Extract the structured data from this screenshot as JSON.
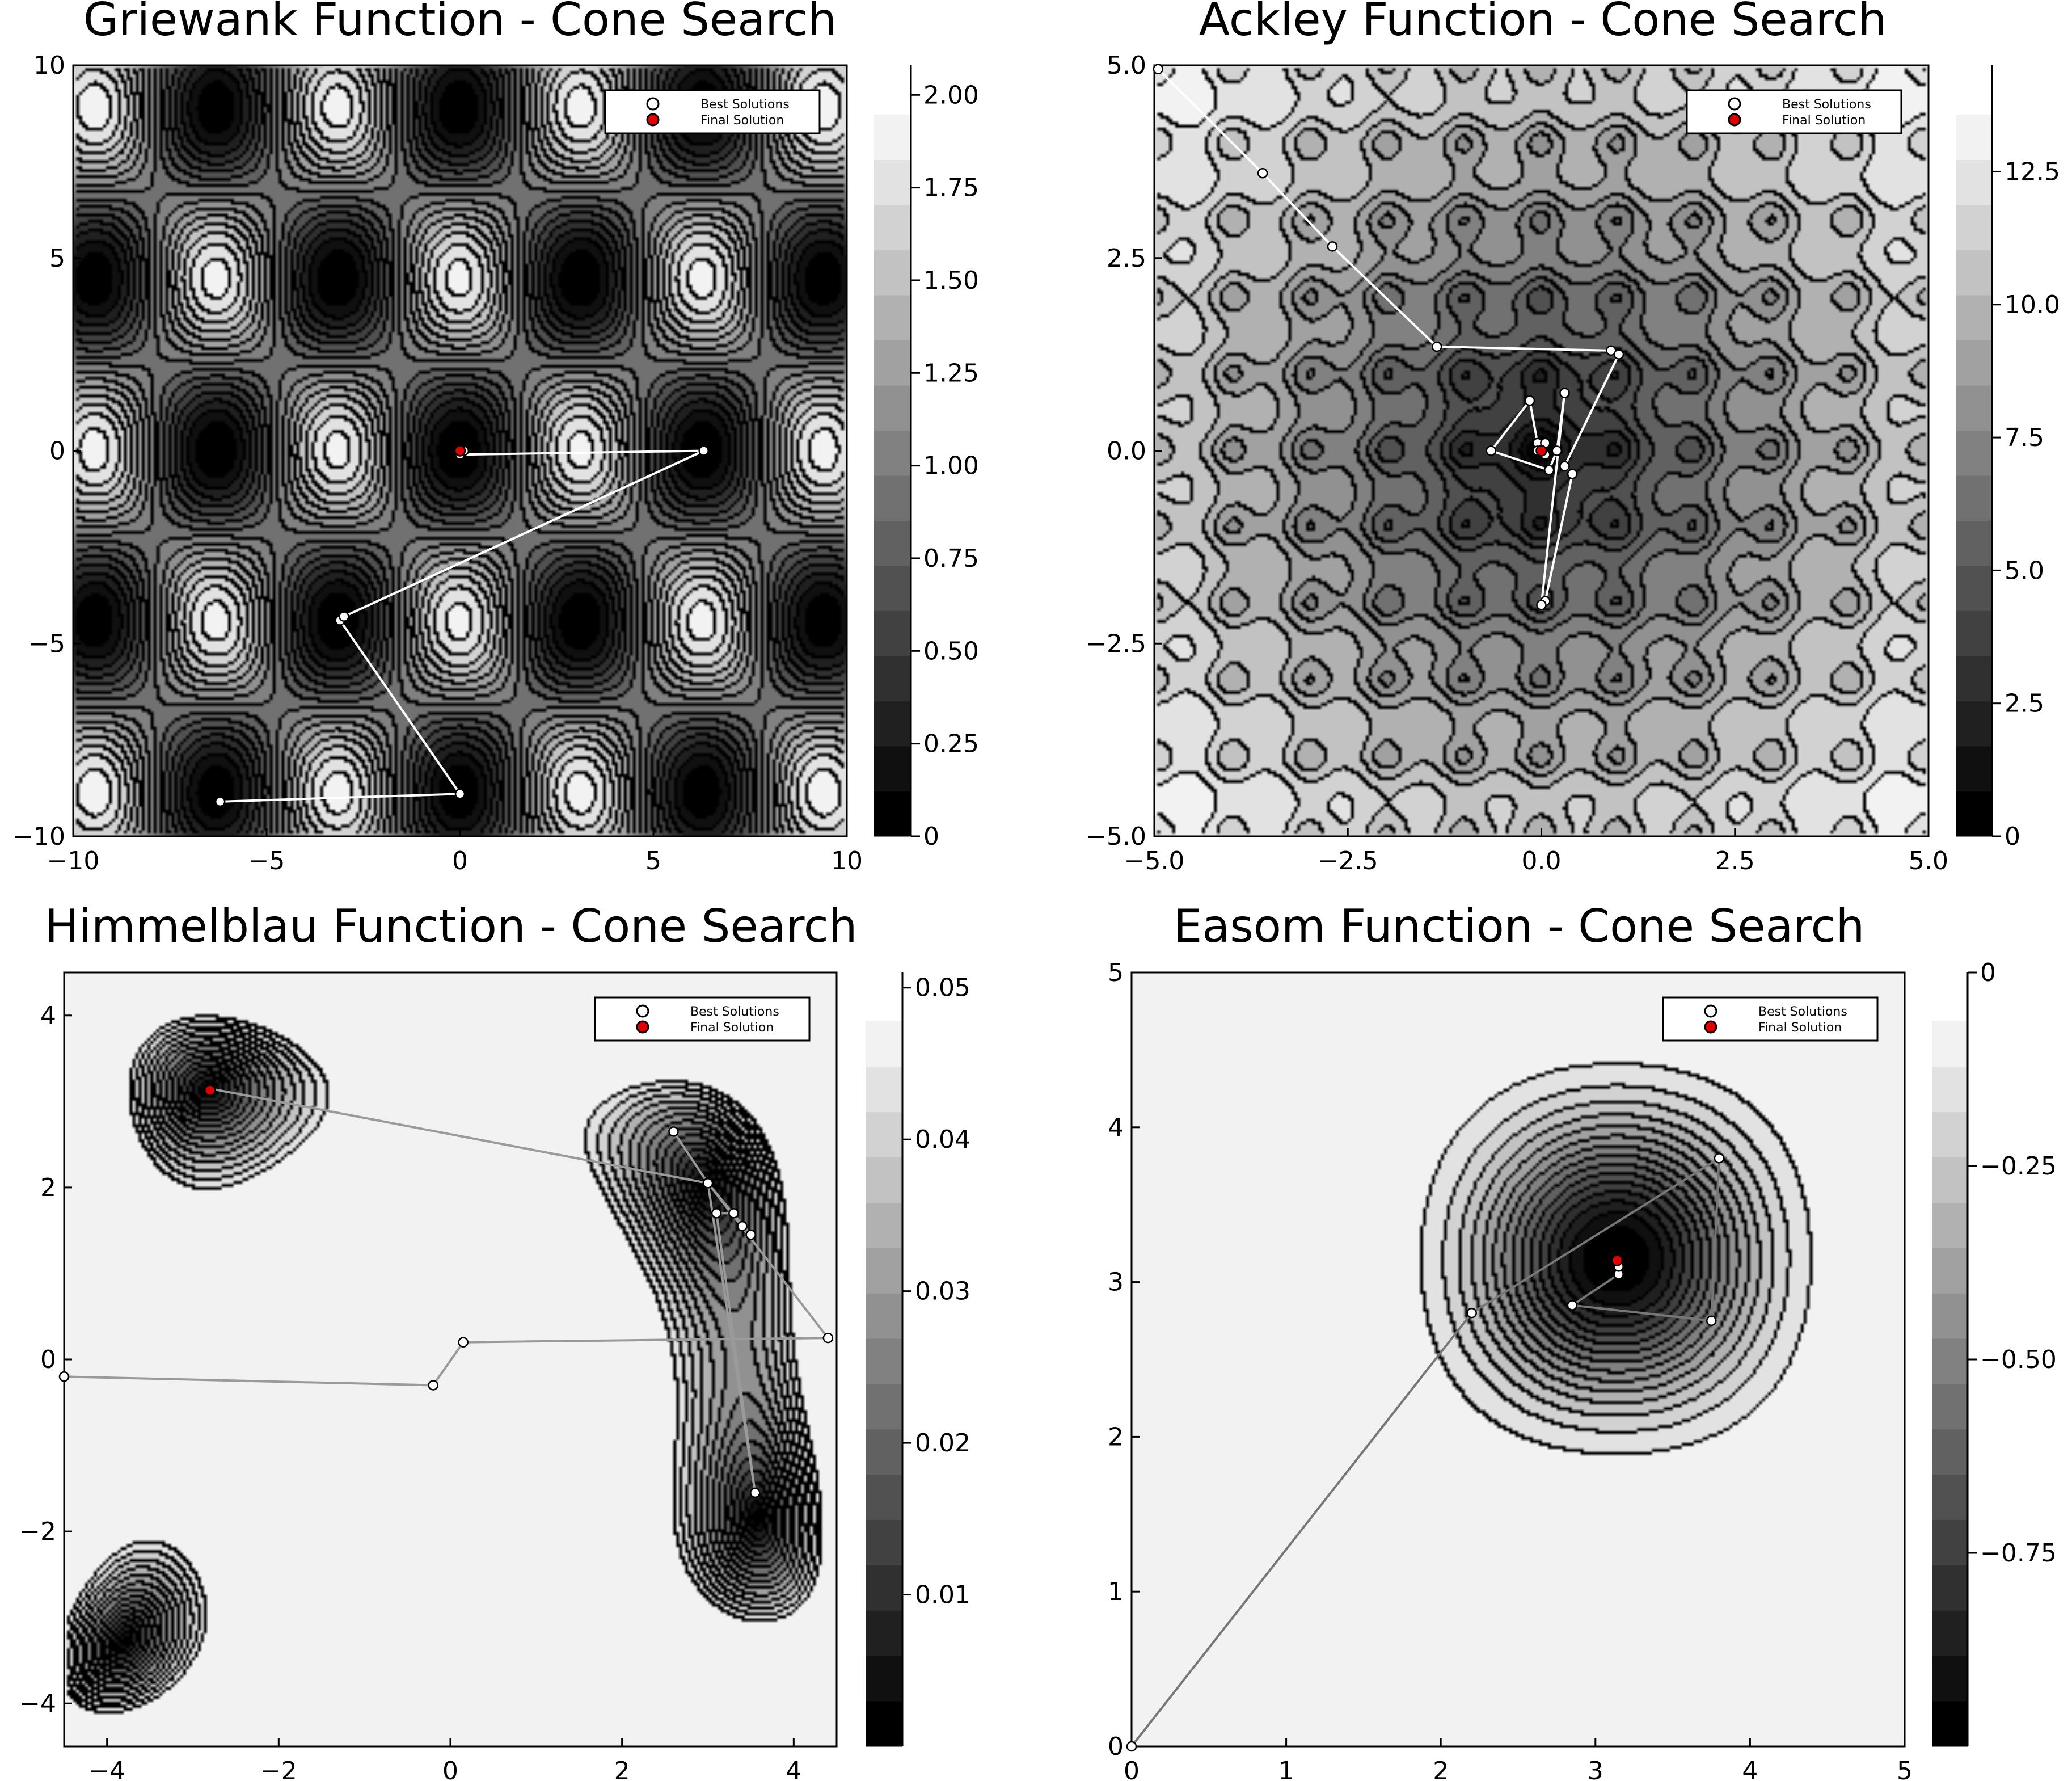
{
  "chart_data": [
    {
      "type": "contour",
      "title": "Griewank Function - Cone Search",
      "xlim": [
        -10,
        10
      ],
      "ylim": [
        -10,
        10
      ],
      "xticks": [
        -10,
        -5,
        0,
        5,
        10
      ],
      "xtick_labels": [
        "−10",
        "−5",
        "0",
        "5",
        "10"
      ],
      "yticks": [
        -10,
        -5,
        0,
        5,
        10
      ],
      "ytick_labels": [
        "−10",
        "−5",
        "0",
        "5",
        "10"
      ],
      "colorbar": {
        "range": [
          0,
          2.08
        ],
        "ticks": [
          0,
          0.25,
          0.5,
          0.75,
          1.0,
          1.25,
          1.5,
          1.75,
          2.0
        ],
        "tick_labels": [
          "0",
          "0.25",
          "0.50",
          "0.75",
          "1.00",
          "1.25",
          "1.50",
          "1.75",
          "2.00"
        ],
        "levels": 16
      },
      "grid": false,
      "legend": {
        "placement": "top-right",
        "entries": [
          "Best Solutions",
          "Final Solution"
        ]
      },
      "path_color": "#ffffff",
      "series": [
        {
          "name": "Best Solutions",
          "points": [
            [
              -6.2,
              -9.1
            ],
            [
              0,
              -8.9
            ],
            [
              -3.1,
              -4.4
            ],
            [
              -3.0,
              -4.3
            ],
            [
              6.3,
              0
            ],
            [
              0,
              -0.1
            ],
            [
              0.1,
              0.0
            ]
          ]
        },
        {
          "name": "Final Solution",
          "points": [
            [
              0,
              0
            ]
          ]
        }
      ]
    },
    {
      "type": "contour",
      "title": "Ackley Function - Cone Search",
      "xlim": [
        -5,
        5
      ],
      "ylim": [
        -5,
        5
      ],
      "xticks": [
        -5,
        -2.5,
        0,
        2.5,
        5
      ],
      "xtick_labels": [
        "−5.0",
        "−2.5",
        "0.0",
        "2.5",
        "5.0"
      ],
      "yticks": [
        -5,
        -2.5,
        0,
        2.5,
        5
      ],
      "ytick_labels": [
        "−5.0",
        "−2.5",
        "0.0",
        "2.5",
        "5.0"
      ],
      "colorbar": {
        "range": [
          0,
          14.5
        ],
        "ticks": [
          0,
          2.5,
          5,
          7.5,
          10,
          12.5
        ],
        "tick_labels": [
          "0",
          "2.5",
          "5.0",
          "7.5",
          "10.0",
          "12.5"
        ],
        "levels": 16
      },
      "grid": false,
      "legend": {
        "placement": "top-right",
        "entries": [
          "Best Solutions",
          "Final Solution"
        ]
      },
      "path_color": "#ffffff",
      "series": [
        {
          "name": "Best Solutions",
          "points": [
            [
              -4.95,
              4.95
            ],
            [
              -3.6,
              3.6
            ],
            [
              -2.7,
              2.65
            ],
            [
              -1.35,
              1.35
            ],
            [
              0.9,
              1.3
            ],
            [
              1.0,
              1.25
            ],
            [
              0.3,
              -0.2
            ],
            [
              0.4,
              -0.3
            ],
            [
              0.05,
              -1.95
            ],
            [
              0.0,
              -2.0
            ],
            [
              0.3,
              0.75
            ],
            [
              0.2,
              0.0
            ],
            [
              0.1,
              -0.25
            ],
            [
              -0.65,
              0.0
            ],
            [
              -0.15,
              0.65
            ],
            [
              -0.05,
              0.1
            ],
            [
              0.05,
              0.1
            ],
            [
              -0.05,
              0.0
            ],
            [
              0.05,
              -0.05
            ]
          ]
        },
        {
          "name": "Final Solution",
          "points": [
            [
              0,
              0
            ]
          ]
        }
      ]
    },
    {
      "type": "contour",
      "title": "Himmelblau Function - Cone Search",
      "xlim": [
        -4.5,
        4.5
      ],
      "ylim": [
        -4.5,
        4.5
      ],
      "xticks": [
        -4,
        -2,
        0,
        2,
        4
      ],
      "xtick_labels": [
        "−4",
        "−2",
        "0",
        "2",
        "4"
      ],
      "yticks": [
        -4,
        -2,
        0,
        2,
        4
      ],
      "ytick_labels": [
        "−4",
        "−2",
        "0",
        "2",
        "4"
      ],
      "colorbar": {
        "range": [
          0,
          0.051
        ],
        "ticks": [
          0.01,
          0.02,
          0.03,
          0.04,
          0.05
        ],
        "tick_labels": [
          "0.01",
          "0.02",
          "0.03",
          "0.04",
          "0.05"
        ],
        "levels": 16
      },
      "grid": false,
      "legend": {
        "placement": "top-right",
        "entries": [
          "Best Solutions",
          "Final Solution"
        ]
      },
      "path_color": "#9a9a9a",
      "series": [
        {
          "name": "Best Solutions",
          "points": [
            [
              -4.5,
              -0.2
            ],
            [
              -0.2,
              -0.3
            ],
            [
              0.15,
              0.2
            ],
            [
              4.4,
              0.25
            ],
            [
              3.0,
              2.05
            ],
            [
              2.6,
              2.65
            ],
            [
              3.0,
              2.05
            ],
            [
              3.55,
              -1.55
            ],
            [
              3.1,
              1.7
            ],
            [
              3.3,
              1.7
            ],
            [
              3.4,
              1.55
            ],
            [
              3.5,
              1.45
            ],
            [
              3.0,
              2.05
            ],
            [
              -2.8,
              3.15
            ],
            [
              -2.8,
              3.13
            ]
          ]
        },
        {
          "name": "Final Solution",
          "points": [
            [
              -2.8,
              3.13
            ]
          ]
        }
      ]
    },
    {
      "type": "contour",
      "title": "Easom Function - Cone Search",
      "xlim": [
        0,
        5
      ],
      "ylim": [
        0,
        5
      ],
      "xticks": [
        0,
        1,
        2,
        3,
        4,
        5
      ],
      "xtick_labels": [
        "0",
        "1",
        "2",
        "3",
        "4",
        "5"
      ],
      "yticks": [
        0,
        1,
        2,
        3,
        4,
        5
      ],
      "ytick_labels": [
        "0",
        "1",
        "2",
        "3",
        "4",
        "5"
      ],
      "colorbar": {
        "range": [
          -1,
          0
        ],
        "ticks": [
          -0.75,
          -0.5,
          -0.25,
          0
        ],
        "tick_labels": [
          "−0.75",
          "−0.50",
          "−0.25",
          "0"
        ],
        "levels": 16
      },
      "grid": false,
      "legend": {
        "placement": "top-right",
        "entries": [
          "Best Solutions",
          "Final Solution"
        ]
      },
      "path_color": "#777777",
      "series": [
        {
          "name": "Best Solutions",
          "points": [
            [
              0,
              0
            ],
            [
              2.2,
              2.8
            ],
            [
              3.8,
              3.8
            ],
            [
              3.75,
              2.75
            ],
            [
              2.85,
              2.85
            ],
            [
              3.15,
              3.05
            ],
            [
              3.15,
              3.1
            ],
            [
              3.14,
              3.14
            ]
          ]
        },
        {
          "name": "Final Solution",
          "points": [
            [
              3.14,
              3.14
            ]
          ]
        }
      ]
    }
  ]
}
